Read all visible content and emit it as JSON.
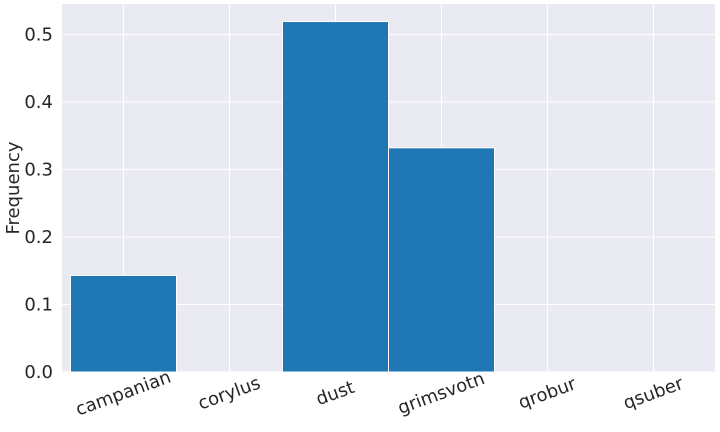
{
  "chart_data": {
    "type": "bar",
    "title": "",
    "xlabel": "",
    "ylabel": "Frequency",
    "categories": [
      "campanian",
      "corylus",
      "dust",
      "grimsvotn",
      "qrobur",
      "qsuber"
    ],
    "values": [
      0.143,
      0.0,
      0.519,
      0.332,
      0.0,
      0.0
    ],
    "ylim": [
      0,
      0.545
    ],
    "yticks": [
      0.0,
      0.1,
      0.2,
      0.3,
      0.4,
      0.5
    ],
    "ytick_labels": [
      "0.0",
      "0.1",
      "0.2",
      "0.3",
      "0.4",
      "0.5"
    ],
    "grid": true,
    "colors": {
      "bar": "#1f77b4",
      "background": "#eaeaf2",
      "grid": "#ffffff"
    }
  }
}
